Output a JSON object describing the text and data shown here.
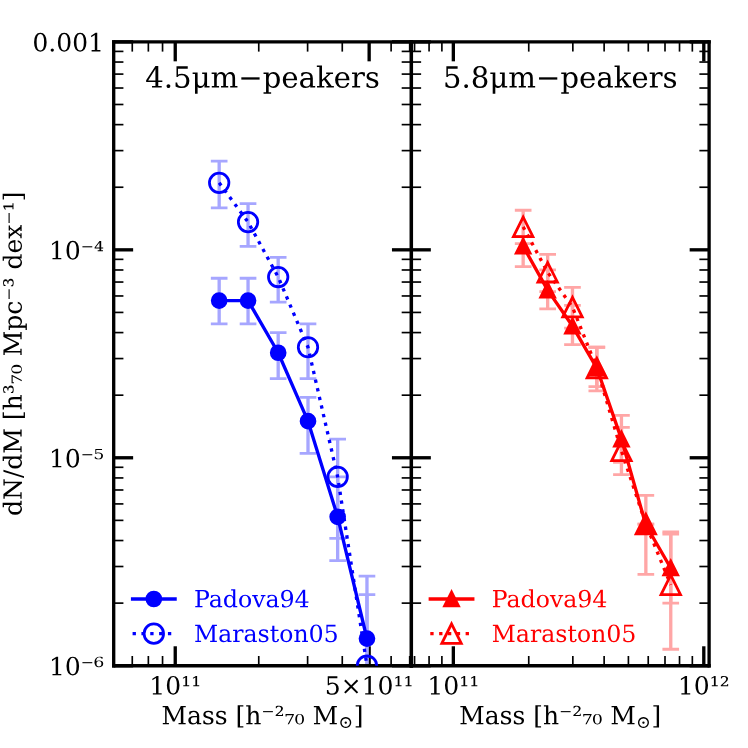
{
  "chart_data": [
    {
      "type": "line",
      "title": "4.5μm−peakers",
      "xlabel": "Mass [h⁻²₇₀ M$_{⊙}$]",
      "ylabel": "dN/dM [h³₇₀ Mpc⁻³ dex⁻¹]",
      "x": [
        144000000000.0,
        183000000000.0,
        235000000000.0,
        301000000000.0,
        385000000000.0,
        491000000000.0
      ],
      "series": [
        {
          "name": "Padova94",
          "color": "#0000ff",
          "marker": "circle",
          "line_style": "solid",
          "values": [
            5.7e-05,
            5.7e-05,
            3.2e-05,
            1.5e-05,
            5.2e-06,
            1.35e-06
          ],
          "errors": [
            [
              4.4e-05,
              7.3e-05
            ],
            [
              4.4e-05,
              7.3e-05
            ],
            [
              2.4e-05,
              4e-05
            ],
            [
              1.05e-05,
              1.95e-05
            ],
            [
              3.2e-06,
              8.1e-06
            ],
            [
              1e-06,
              2.2e-06
            ]
          ]
        },
        {
          "name": "Maraston05",
          "color": "#0000ff",
          "marker": "circle",
          "line_style": "dotted",
          "values": [
            0.00021,
            0.000136,
            7.4e-05,
            3.4e-05,
            8.1e-06,
            1e-06
          ],
          "errors": [
            [
              0.000159,
              0.000267
            ],
            [
              0.000104,
              0.000167
            ],
            [
              5.6e-05,
              9.2e-05
            ],
            [
              2.4e-05,
              4.4e-05
            ],
            [
              4.1e-06,
              1.23e-05
            ],
            [
              1e-06,
              2.7e-06
            ]
          ]
        }
      ],
      "log": "xy",
      "xlim": [
        60000000000.0,
        710000000000.0
      ],
      "ylim": [
        1e-06,
        0.001
      ],
      "xticks": [
        {
          "value": 100000000000.0,
          "label": "10¹¹"
        },
        {
          "value": 500000000000.0,
          "label": "5×10¹¹"
        }
      ],
      "yticks": [
        {
          "value": 1e-06,
          "label": "10⁻⁶"
        },
        {
          "value": 1e-05,
          "label": "10⁻⁵"
        },
        {
          "value": 0.0001,
          "label": "10⁻⁴"
        },
        {
          "value": 0.001,
          "label": "0.001"
        }
      ],
      "legend": "bottom left",
      "grid": false
    },
    {
      "type": "line",
      "title": "5.8μm−peakers",
      "xlabel": "Mass [h⁻²₇₀ M$_{⊙}$]",
      "x": [
        190000000000.0,
        238000000000.0,
        299000000000.0,
        374000000000.0,
        469000000000.0,
        587000000000.0,
        738000000000.0
      ],
      "series": [
        {
          "name": "Padova94",
          "color": "#ff0000",
          "marker": "triangle",
          "line_style": "solid",
          "values": [
            0.000104,
            6.4e-05,
            4.3e-05,
            2.7e-05,
            1.23e-05,
            4.75e-06,
            2.95e-06
          ],
          "errors": [
            [
              8.3e-05,
              0.000116
            ],
            [
              5.2e-05,
              8e-05
            ],
            [
              3.5e-05,
              5.4e-05
            ],
            [
              2.1e-05,
              3.4e-05
            ],
            [
              9.5e-06,
              1.6e-05
            ],
            [
              2.75e-06,
              6.6e-06
            ],
            [
              2e-06,
              4.3e-06
            ]
          ]
        },
        {
          "name": "Maraston05",
          "color": "#ff0000",
          "marker": "triangle",
          "line_style": "dotted",
          "values": [
            0.000129,
            7.8e-05,
            5.3e-05,
            2.7e-05,
            1.08e-05,
            4.8e-06,
            2.45e-06
          ],
          "errors": [
            [
              0.000107,
              0.000155
            ],
            [
              6.3e-05,
              9.5e-05
            ],
            [
              4.2e-05,
              6.6e-05
            ],
            [
              2.2e-05,
              3.4e-05
            ],
            [
              8.3e-06,
              1.4e-05
            ],
            null,
            [
              1.2e-06,
              4.4e-06
            ]
          ]
        }
      ],
      "log": "xy",
      "xlim": [
        68000000000.0,
        1050000000000.0
      ],
      "ylim": [
        1e-06,
        0.001
      ],
      "xticks": [
        {
          "value": 100000000000.0,
          "label": "10¹¹"
        },
        {
          "value": 1000000000000.0,
          "label": "10¹²"
        }
      ],
      "yticks": [
        {
          "value": 1e-06,
          "label": null
        },
        {
          "value": 1e-05,
          "label": null
        },
        {
          "value": 0.0001,
          "label": null
        },
        {
          "value": 0.001,
          "label": null
        }
      ],
      "tick_labels": "x",
      "legend": "bottom left",
      "grid": false
    }
  ]
}
